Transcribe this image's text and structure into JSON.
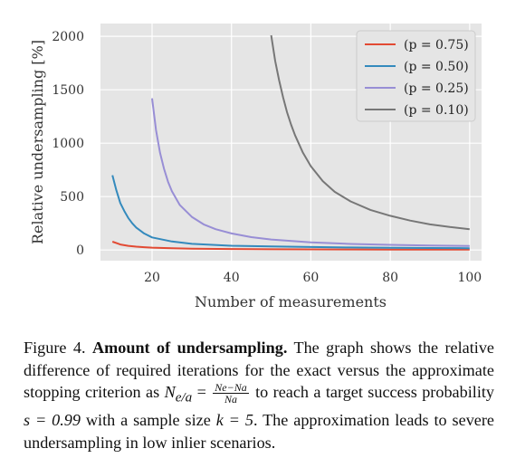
{
  "chart_data": {
    "type": "line",
    "title": "",
    "xlabel": "Number of measurements",
    "ylabel": "Relative undersampling [%]",
    "xlim": [
      7,
      103
    ],
    "ylim": [
      -100,
      2120
    ],
    "x_ticks": [
      "20",
      "40",
      "60",
      "80",
      "100"
    ],
    "y_ticks": [
      "0",
      "500",
      "1000",
      "1500",
      "2000"
    ],
    "grid": true,
    "legend_position": "top-right",
    "series": [
      {
        "name": "(p = 0.75)",
        "color": "#e24a33",
        "x": [
          10,
          12,
          14,
          16,
          18,
          20,
          25,
          30,
          40,
          50,
          60,
          70,
          80,
          90,
          100
        ],
        "y": [
          78,
          52,
          39,
          31,
          26,
          22,
          16,
          13,
          9,
          7,
          6,
          5,
          4,
          4,
          3
        ]
      },
      {
        "name": "(p = 0.50)",
        "color": "#348abd",
        "x": [
          10,
          11,
          12,
          13,
          14,
          15,
          16,
          18,
          20,
          25,
          30,
          40,
          50,
          60,
          70,
          80,
          90,
          100
        ],
        "y": [
          700,
          560,
          440,
          365,
          300,
          250,
          210,
          155,
          118,
          80,
          58,
          40,
          33,
          28,
          24,
          21,
          19,
          17
        ]
      },
      {
        "name": "(p = 0.25)",
        "color": "#988ed5",
        "x": [
          20,
          21,
          22,
          23,
          24,
          25,
          27,
          30,
          33,
          36,
          40,
          45,
          50,
          60,
          70,
          80,
          90,
          100
        ],
        "y": [
          1420,
          1120,
          910,
          760,
          640,
          550,
          420,
          310,
          240,
          195,
          155,
          120,
          98,
          72,
          57,
          48,
          42,
          38
        ]
      },
      {
        "name": "(p = 0.10)",
        "color": "#777777",
        "x": [
          50,
          51,
          52,
          53,
          54,
          55,
          56,
          58,
          60,
          63,
          66,
          70,
          75,
          80,
          85,
          90,
          95,
          100
        ],
        "y": [
          2010,
          1770,
          1590,
          1430,
          1290,
          1175,
          1075,
          910,
          785,
          645,
          545,
          455,
          375,
          320,
          275,
          240,
          215,
          195
        ]
      }
    ]
  },
  "caption": {
    "figure_label": "Figure 4.",
    "heading": "Amount of undersampling.",
    "text1": "The graph shows the relative difference of required iterations for the exact versus the approximate stopping criterion as",
    "formula_lhs": "N",
    "formula_sub": "e/a",
    "formula_eq": "=",
    "frac_num": "Ne−Na",
    "frac_den": "Na",
    "text2": "to reach a target success probability",
    "prob_expr": "s = 0.99",
    "text3": "with a sample size",
    "k_expr": "k = 5",
    "text4": ". The approximation leads to severe undersampling in low inlier scenarios."
  }
}
